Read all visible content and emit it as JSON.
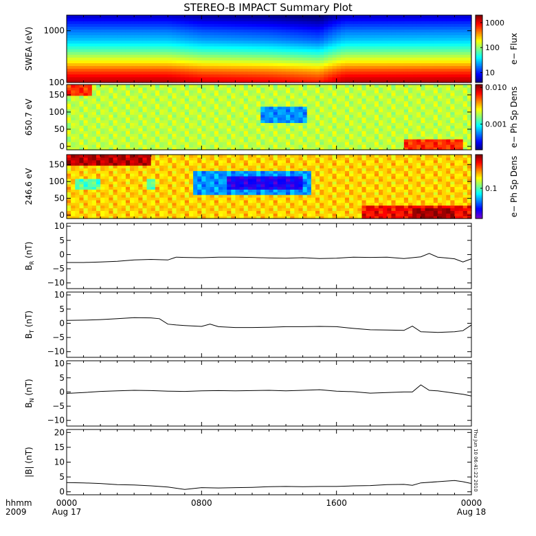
{
  "title": "STEREO-B IMPACT Summary Plot",
  "timestamp_label": "Thu Jun 10 06:41:22 2010",
  "time_axis": {
    "row1_label": "hhmm",
    "row2_label": "2009",
    "ticks": [
      {
        "hours": 0,
        "label": "0000",
        "date": "Aug 17"
      },
      {
        "hours": 8,
        "label": "0800",
        "date": ""
      },
      {
        "hours": 16,
        "label": "1600",
        "date": ""
      },
      {
        "hours": 24,
        "label": "0000",
        "date": "Aug 18"
      }
    ]
  },
  "chart_data": [
    {
      "type": "heatmap",
      "ylabel": "SWEA (eV)",
      "y_scale": "log",
      "ylim": [
        100,
        2000
      ],
      "y_ticks": [
        {
          "v": 100,
          "label": "100"
        },
        {
          "v": 1000,
          "label": "1000"
        }
      ],
      "colorbar": {
        "label": "e− Flux",
        "scale": "log",
        "range": [
          4,
          2000
        ],
        "ticks": [
          {
            "v": 10,
            "label": "10"
          },
          {
            "v": 100,
            "label": "100"
          },
          {
            "v": 1000,
            "label": "1000"
          }
        ]
      },
      "energy_profile": [
        [
          100,
          1500
        ],
        [
          130,
          1000
        ],
        [
          170,
          600
        ],
        [
          260,
          200
        ],
        [
          420,
          70
        ],
        [
          650,
          30
        ],
        [
          1000,
          18
        ],
        [
          1500,
          10
        ],
        [
          2000,
          6
        ]
      ],
      "time_modulation": [
        [
          0,
          1.0
        ],
        [
          6,
          1.0
        ],
        [
          8,
          0.8
        ],
        [
          12,
          0.7
        ],
        [
          14,
          0.6
        ],
        [
          15,
          0.55
        ],
        [
          16.5,
          1.0
        ],
        [
          24,
          1.05
        ]
      ]
    },
    {
      "type": "heatmap",
      "ylabel": "650.7 eV",
      "ylim": [
        -10,
        180
      ],
      "y_ticks": [
        {
          "v": 0,
          "label": "0"
        },
        {
          "v": 50,
          "label": "50"
        },
        {
          "v": 100,
          "label": "100"
        },
        {
          "v": 150,
          "label": "150"
        }
      ],
      "colorbar": {
        "label": "e− Ph Sp Dens",
        "scale": "log",
        "range": [
          0.0002,
          0.012
        ],
        "ticks": [
          {
            "v": 0.001,
            "label": "0.001"
          },
          {
            "v": 0.01,
            "label": "0.010"
          }
        ]
      },
      "background_level": 0.002,
      "features": [
        {
          "t": [
            11.5,
            14.2
          ],
          "pa": [
            70,
            120
          ],
          "level": 0.0006
        },
        {
          "t": [
            20,
            23.5
          ],
          "pa": [
            -10,
            25
          ],
          "level": 0.006
        },
        {
          "t": [
            0,
            1.5
          ],
          "pa": [
            150,
            180
          ],
          "level": 0.006
        }
      ]
    },
    {
      "type": "heatmap",
      "ylabel": "246.6 eV",
      "ylim": [
        -10,
        180
      ],
      "y_ticks": [
        {
          "v": 0,
          "label": "0"
        },
        {
          "v": 50,
          "label": "50"
        },
        {
          "v": 100,
          "label": "100"
        },
        {
          "v": 150,
          "label": "150"
        }
      ],
      "colorbar": {
        "label": "e− Ph Sp Dens",
        "scale": "log",
        "range": [
          0.02,
          0.6
        ],
        "ticks": [
          {
            "v": 0.1,
            "label": "0.1"
          }
        ]
      },
      "background_level": 0.2,
      "features": [
        {
          "t": [
            0,
            5
          ],
          "pa": [
            150,
            180
          ],
          "level": 0.5
        },
        {
          "t": [
            0.5,
            2
          ],
          "pa": [
            80,
            110
          ],
          "level": 0.1
        },
        {
          "t": [
            4.8,
            5.3
          ],
          "pa": [
            80,
            110
          ],
          "level": 0.1
        },
        {
          "t": [
            7.5,
            14.5
          ],
          "pa": [
            60,
            130
          ],
          "level": 0.055
        },
        {
          "t": [
            9.5,
            14
          ],
          "pa": [
            75,
            115
          ],
          "level": 0.03
        },
        {
          "t": [
            17.5,
            24
          ],
          "pa": [
            -10,
            30
          ],
          "level": 0.4
        },
        {
          "t": [
            20.5,
            23
          ],
          "pa": [
            -10,
            20
          ],
          "level": 0.55
        }
      ]
    },
    {
      "type": "line",
      "ylabel": "B",
      "ylabel_sub": "R",
      "ylabel_unit": " (nT)",
      "ylim": [
        -12,
        11
      ],
      "y_ticks": [
        {
          "v": -10,
          "label": "−10"
        },
        {
          "v": -5,
          "label": "−5"
        },
        {
          "v": 0,
          "label": "0"
        },
        {
          "v": 5,
          "label": "5"
        },
        {
          "v": 10,
          "label": "10"
        }
      ],
      "x": [
        0,
        1,
        2,
        3,
        4,
        5,
        6,
        6.5,
        7,
        8,
        9,
        10,
        11,
        12,
        13,
        14,
        15,
        16,
        17,
        18,
        19,
        20,
        21,
        21.5,
        22,
        22.5,
        23,
        23.5,
        24
      ],
      "y": [
        -2.8,
        -2.8,
        -2.6,
        -2.4,
        -1.9,
        -1.7,
        -1.9,
        -0.9,
        -1.0,
        -1.1,
        -0.9,
        -0.9,
        -1.0,
        -1.2,
        -1.3,
        -1.1,
        -1.4,
        -1.3,
        -0.9,
        -1.0,
        -0.9,
        -1.4,
        -0.8,
        0.4,
        -0.9,
        -1.2,
        -1.5,
        -2.6,
        -1.5
      ]
    },
    {
      "type": "line",
      "ylabel": "B",
      "ylabel_sub": "T",
      "ylabel_unit": " (nT)",
      "ylim": [
        -12,
        11
      ],
      "y_ticks": [
        {
          "v": -10,
          "label": "−10"
        },
        {
          "v": -5,
          "label": "−5"
        },
        {
          "v": 0,
          "label": "0"
        },
        {
          "v": 5,
          "label": "5"
        },
        {
          "v": 10,
          "label": "10"
        }
      ],
      "x": [
        0,
        1,
        2,
        3,
        4,
        5,
        5.5,
        6,
        6.5,
        7,
        8,
        8.5,
        9,
        10,
        11,
        12,
        13,
        14,
        15,
        16,
        17,
        18,
        19,
        20,
        20.5,
        21,
        22,
        23,
        23.5,
        24
      ],
      "y": [
        1.0,
        1.1,
        1.3,
        1.6,
        2.0,
        1.9,
        1.6,
        -0.3,
        -0.6,
        -0.8,
        -1.1,
        -0.3,
        -1.2,
        -1.5,
        -1.5,
        -1.4,
        -1.2,
        -1.2,
        -1.1,
        -1.2,
        -1.8,
        -2.3,
        -2.4,
        -2.5,
        -1.0,
        -3.0,
        -3.2,
        -3.0,
        -2.6,
        -0.6
      ]
    },
    {
      "type": "line",
      "ylabel": "B",
      "ylabel_sub": "N",
      "ylabel_unit": " (nT)",
      "ylim": [
        -12,
        11
      ],
      "y_ticks": [
        {
          "v": -10,
          "label": "−10"
        },
        {
          "v": -5,
          "label": "−5"
        },
        {
          "v": 0,
          "label": "0"
        },
        {
          "v": 5,
          "label": "5"
        },
        {
          "v": 10,
          "label": "10"
        }
      ],
      "x": [
        0,
        1,
        2,
        3,
        4,
        5,
        6,
        7,
        8,
        9,
        10,
        11,
        12,
        13,
        14,
        15,
        16,
        17,
        18,
        19,
        20,
        20.5,
        21,
        21.5,
        22,
        23,
        23.5,
        24
      ],
      "y": [
        -0.5,
        -0.2,
        0.2,
        0.4,
        0.6,
        0.5,
        0.3,
        0.2,
        0.4,
        0.5,
        0.4,
        0.5,
        0.6,
        0.4,
        0.6,
        0.8,
        0.3,
        0.1,
        -0.4,
        -0.2,
        0.0,
        0.0,
        2.5,
        0.6,
        0.4,
        -0.4,
        -0.8,
        -1.4
      ]
    },
    {
      "type": "line",
      "ylabel": "|B| (nT)",
      "ylim": [
        -1,
        21
      ],
      "y_ticks": [
        {
          "v": 0,
          "label": "0"
        },
        {
          "v": 5,
          "label": "5"
        },
        {
          "v": 10,
          "label": "10"
        },
        {
          "v": 15,
          "label": "15"
        },
        {
          "v": 20,
          "label": "20"
        }
      ],
      "x": [
        0,
        1,
        2,
        3,
        4,
        5,
        6,
        7,
        8,
        9,
        10,
        11,
        12,
        13,
        14,
        15,
        16,
        17,
        18,
        19,
        20,
        20.5,
        21,
        22,
        23,
        23.5,
        24
      ],
      "y": [
        3.1,
        3.0,
        2.8,
        2.4,
        2.3,
        2.0,
        1.6,
        0.8,
        1.4,
        1.3,
        1.4,
        1.5,
        1.7,
        1.8,
        1.7,
        1.8,
        1.8,
        2.0,
        2.1,
        2.4,
        2.5,
        2.2,
        3.0,
        3.4,
        3.8,
        3.4,
        2.8
      ]
    }
  ]
}
